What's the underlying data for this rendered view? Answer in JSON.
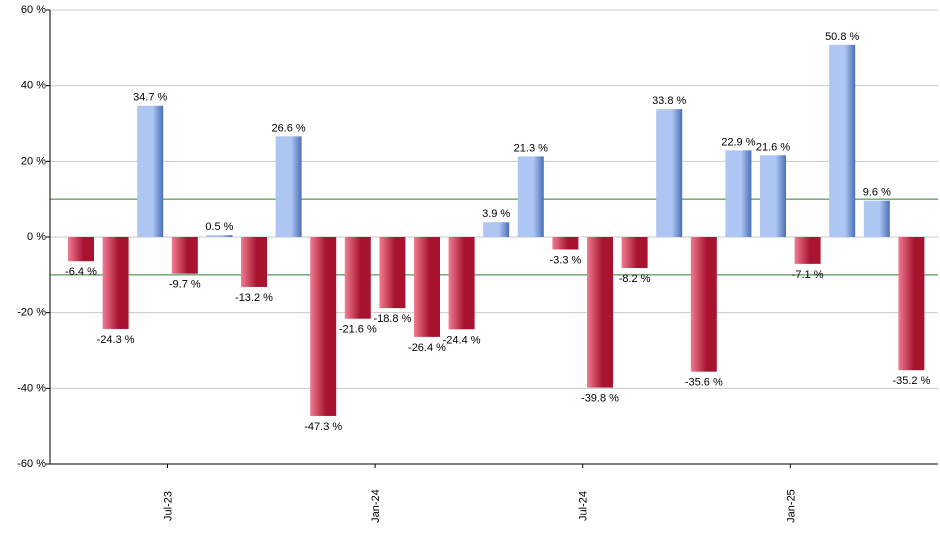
{
  "colors": {
    "positive_light": "#aec6f2",
    "positive_dark": "#4a6fb8",
    "negative_light": "#f07d92",
    "negative_dark": "#a8132f",
    "grid": "#c8c8c8",
    "reference_line": "#2e7d32",
    "axis": "#000000"
  },
  "chart_data": {
    "type": "bar",
    "title": "",
    "xlabel": "",
    "ylabel": "",
    "ylim": [
      -60,
      60
    ],
    "ytick_values": [
      -60,
      -40,
      -20,
      0,
      20,
      40,
      60
    ],
    "ytick_labels": [
      "-60 %",
      "-40 %",
      "-20 %",
      "0 %",
      "20 %",
      "40 %",
      "60 %"
    ],
    "grid": true,
    "reference_lines": [
      10,
      -10
    ],
    "x_tick_labels": [
      {
        "label": "Jul-23",
        "after_bar": 3
      },
      {
        "label": "Jan-24",
        "after_bar": 9
      },
      {
        "label": "Jul-24",
        "after_bar": 15
      },
      {
        "label": "Jan-25",
        "after_bar": 21
      }
    ],
    "values": [
      -6.4,
      -24.3,
      34.7,
      -9.7,
      0.5,
      -13.2,
      26.6,
      -47.3,
      -21.6,
      -18.8,
      -26.4,
      -24.4,
      3.9,
      21.3,
      -3.3,
      -39.8,
      -8.2,
      33.8,
      -35.6,
      22.9,
      21.6,
      -7.1,
      50.8,
      9.6,
      -35.2
    ],
    "value_labels": [
      "-6.4 %",
      "-24.3 %",
      "34.7 %",
      "-9.7 %",
      "0.5 %",
      "-13.2 %",
      "26.6 %",
      "-47.3 %",
      "-21.6 %",
      "-18.8 %",
      "-26.4 %",
      "-24.4 %",
      "3.9 %",
      "21.3 %",
      "-3.3 %",
      "-39.8 %",
      "-8.2 %",
      "33.8 %",
      "-35.6 %",
      "22.9 %",
      "21.6 %",
      "-7.1 %",
      "50.8 %",
      "9.6 %",
      "-35.2 %"
    ]
  }
}
